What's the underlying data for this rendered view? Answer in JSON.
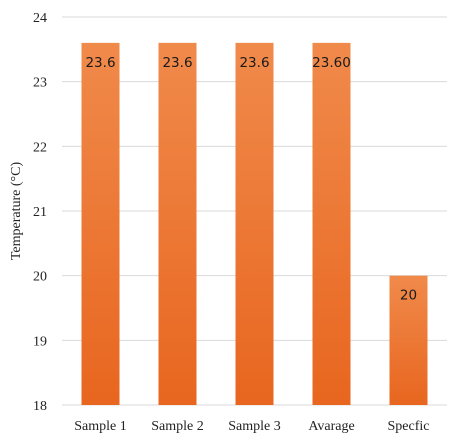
{
  "chart_data": {
    "type": "bar",
    "title": "",
    "xlabel": "",
    "ylabel": "Temperature (°C)",
    "categories": [
      "Sample 1",
      "Sample 2",
      "Sample 3",
      "Avarage",
      "Specfic"
    ],
    "values": [
      23.6,
      23.6,
      23.6,
      23.6,
      20
    ],
    "data_labels": [
      "23.6",
      "23.6",
      "23.6",
      "23.60",
      "20"
    ],
    "ylim": [
      18,
      24
    ],
    "yticks": [
      18,
      19,
      20,
      21,
      22,
      23,
      24
    ],
    "grid": true,
    "legend": "none",
    "colors": {
      "bar_top": "#f08a4b",
      "bar_bottom": "#e8661f",
      "grid": "#d9d9d9"
    }
  }
}
